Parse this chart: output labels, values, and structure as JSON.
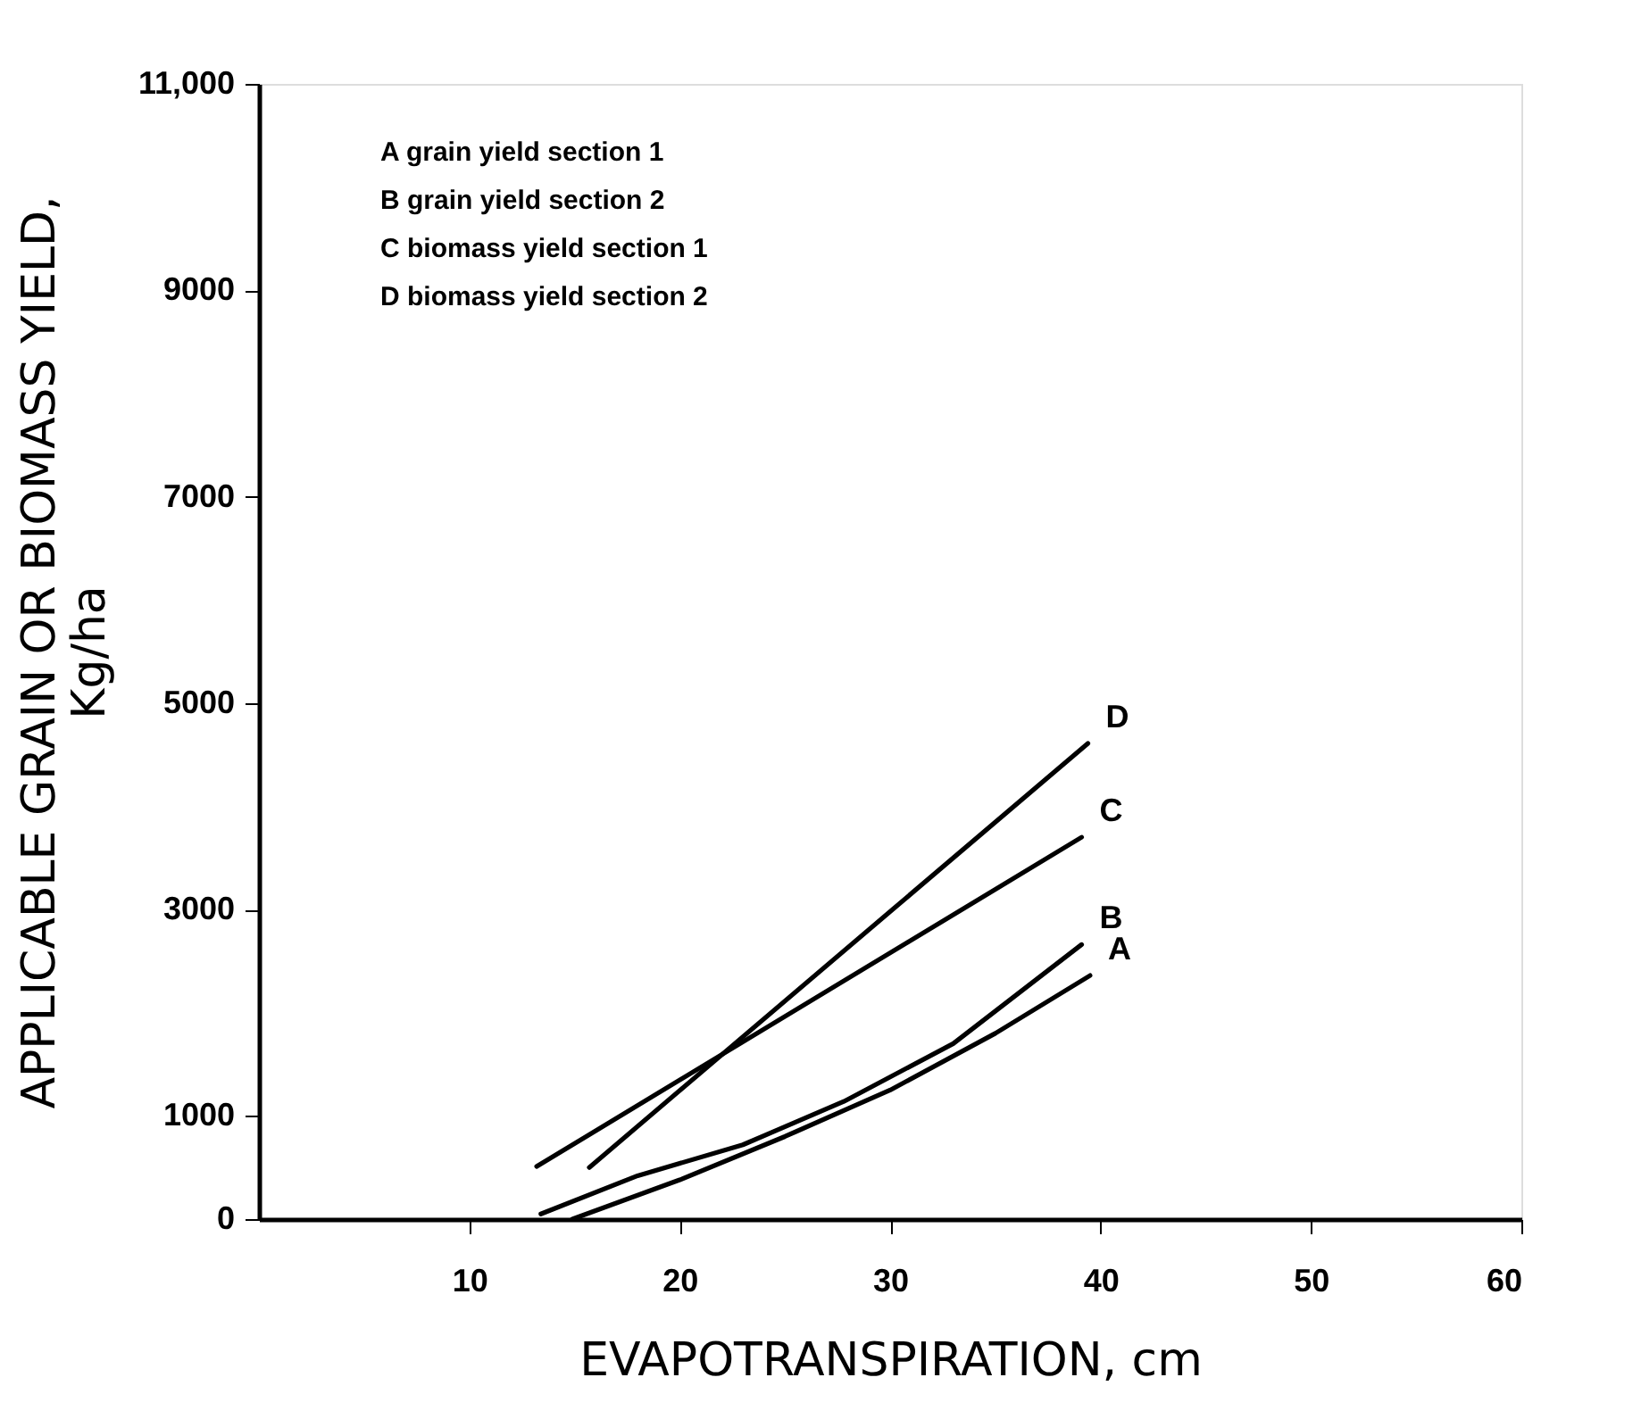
{
  "chart_data": {
    "type": "line",
    "xlabel": "EVAPOTRANSPIRATION, cm",
    "ylabel": "APPLICABLE GRAIN OR BIOMASS YIELD,\nKg/ha",
    "xlim": [
      0,
      60
    ],
    "xticks": [
      10,
      20,
      30,
      40,
      50,
      60
    ],
    "ylim": [
      0,
      11000
    ],
    "yticks": [
      0,
      {
        "value": 1000,
        "label": "1000"
      },
      {
        "value": 3000,
        "label": "3000"
      },
      {
        "value": 5000,
        "label": "5000"
      },
      {
        "value": 7000,
        "label": "7000"
      },
      {
        "value": 9000,
        "label": "9000"
      },
      {
        "value": 11000,
        "label": "11,000"
      }
    ],
    "grid": false,
    "legend": false,
    "marker": "none",
    "line_style": "solid",
    "series": [
      {
        "name": "A",
        "color": "#000000",
        "x": [
          14.9,
          20,
          25,
          30,
          35,
          39.5
        ],
        "values": [
          0,
          380,
          800,
          1250,
          1800,
          2360
        ]
      },
      {
        "name": "B",
        "color": "#000000",
        "x": [
          13.4,
          18,
          23,
          27.8,
          33,
          39.1
        ],
        "values": [
          50,
          420,
          720,
          1140,
          1700,
          2660
        ]
      },
      {
        "name": "C",
        "color": "#000000",
        "x": [
          13.2,
          39.1
        ],
        "values": [
          510,
          3700
        ]
      },
      {
        "name": "D",
        "color": "#000000",
        "x": [
          15.7,
          39.4
        ],
        "values": [
          500,
          4610
        ]
      }
    ],
    "annotations": [
      "A grain yield section 1",
      "B grain yield section 2",
      "C biomass yield section 1",
      "D biomass yield section 2"
    ]
  }
}
